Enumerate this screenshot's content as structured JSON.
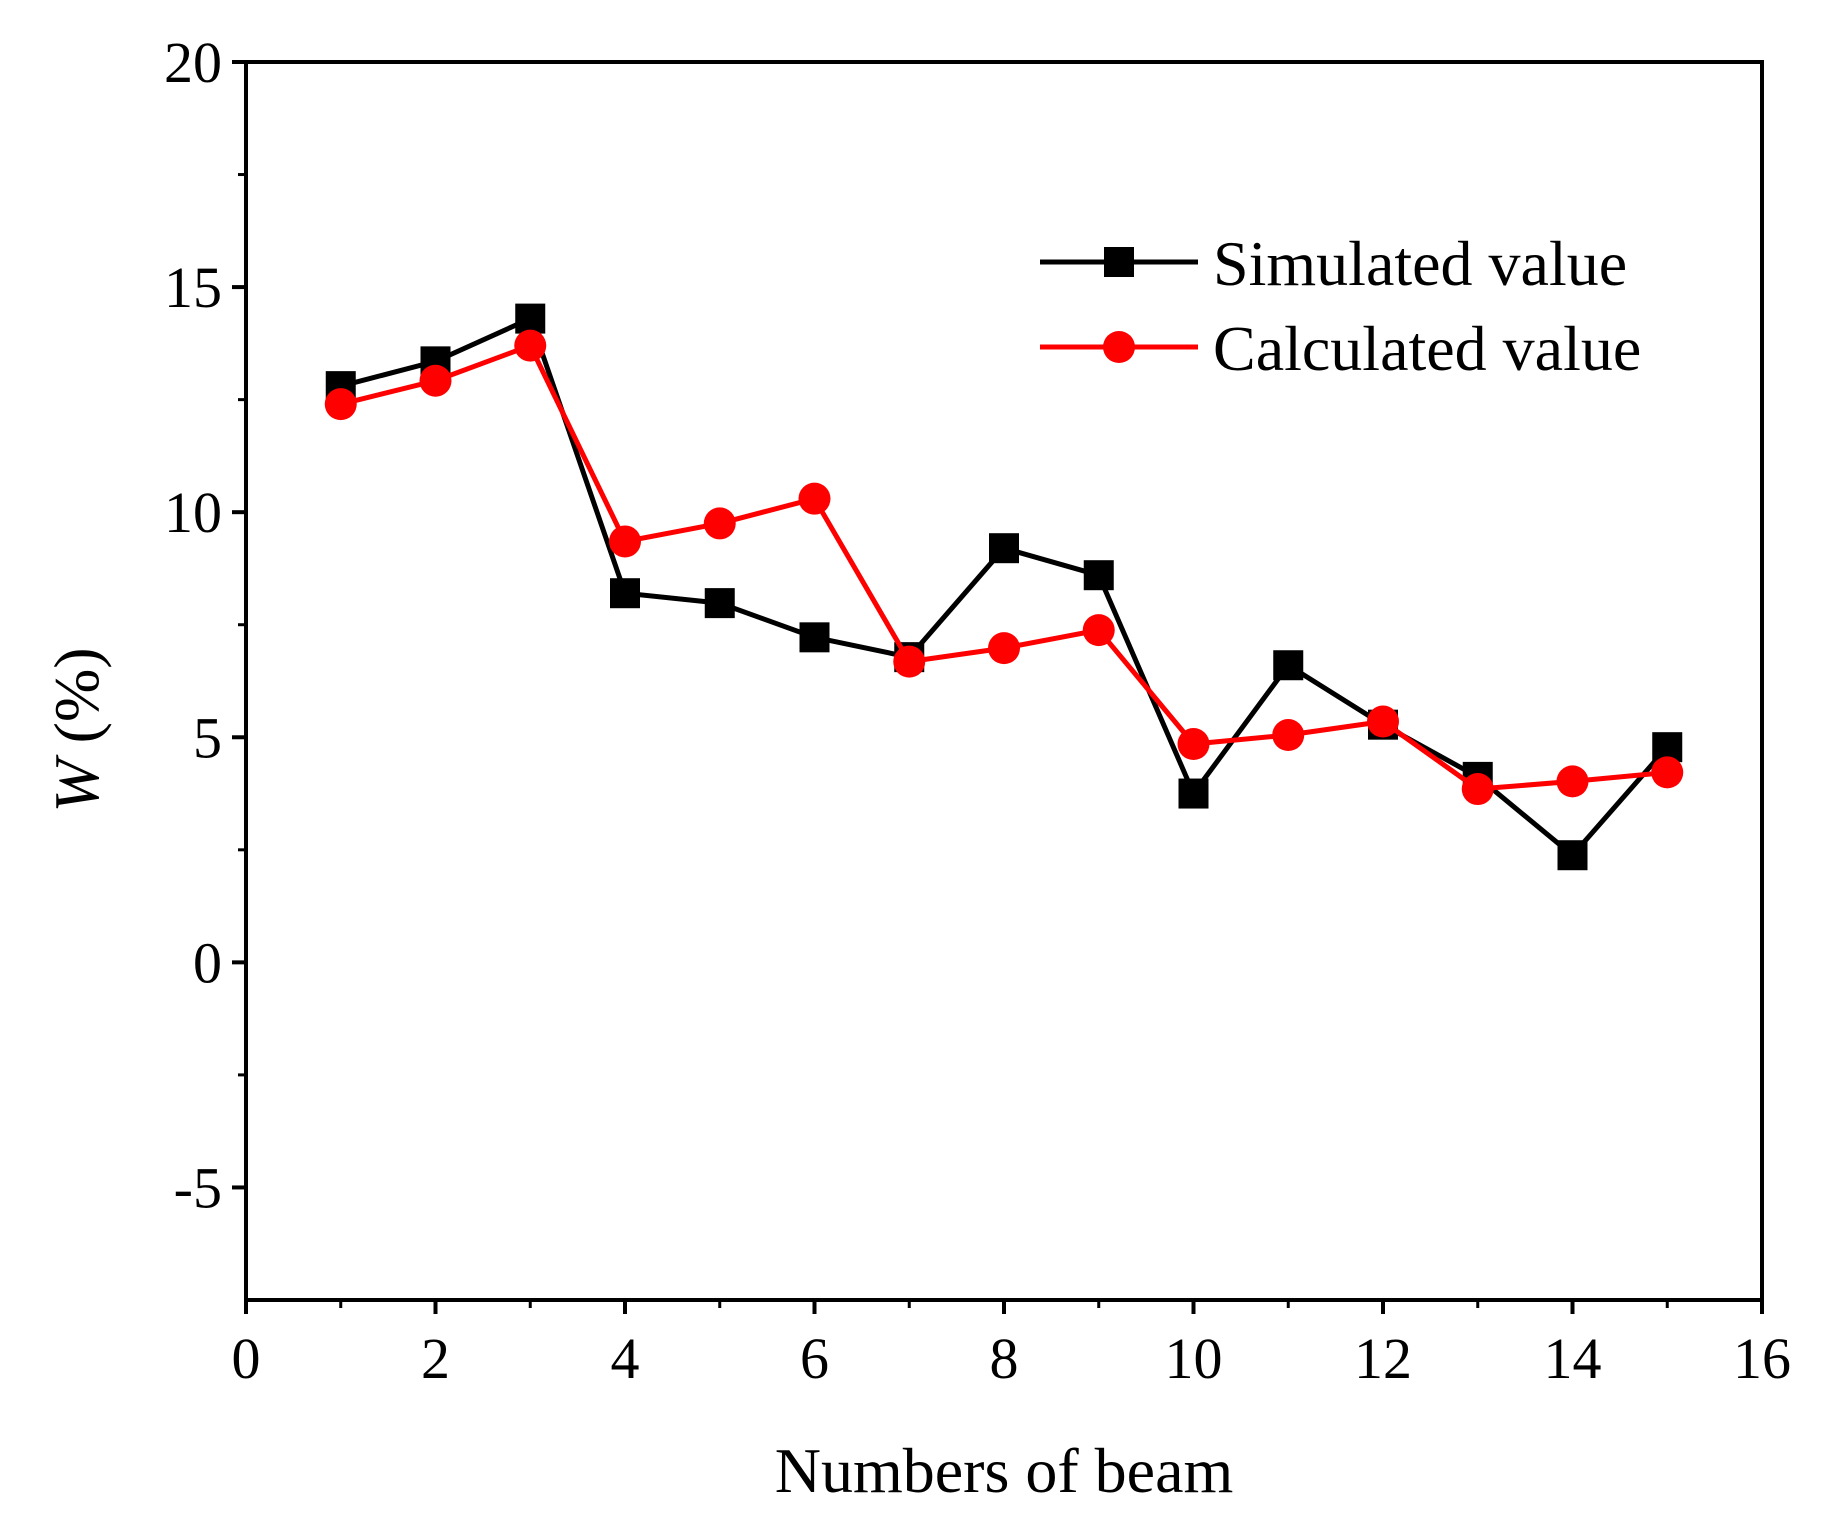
{
  "chart_data": {
    "type": "line",
    "title": "",
    "xlabel": "Numbers of beam",
    "ylabel_var": "W",
    "ylabel_unit": " (%)",
    "xlim": [
      0,
      16
    ],
    "ylim": [
      -7.5,
      20
    ],
    "xticks": [
      0,
      2,
      4,
      6,
      8,
      10,
      12,
      14,
      16
    ],
    "yticks": [
      -5,
      0,
      5,
      10,
      15,
      20
    ],
    "xtick_labels": [
      "0",
      "2",
      "4",
      "6",
      "8",
      "10",
      "12",
      "14",
      "16"
    ],
    "ytick_labels": [
      "-5",
      "0",
      "5",
      "10",
      "15",
      "20"
    ],
    "grid": false,
    "legend_position": "top-right",
    "x": [
      1,
      2,
      3,
      4,
      5,
      6,
      7,
      8,
      9,
      10,
      11,
      12,
      13,
      14,
      15
    ],
    "series": [
      {
        "name": "Simulated value",
        "marker": "square",
        "color": "#000000",
        "values": [
          12.8,
          13.35,
          14.3,
          8.2,
          7.98,
          7.22,
          6.78,
          9.2,
          8.6,
          3.75,
          6.6,
          5.28,
          4.12,
          2.38,
          4.78
        ]
      },
      {
        "name": "Calculated value",
        "marker": "circle",
        "color": "#ff0000",
        "values": [
          12.4,
          12.92,
          13.7,
          9.35,
          9.75,
          10.3,
          6.68,
          6.98,
          7.38,
          4.85,
          5.05,
          5.35,
          3.85,
          4.02,
          4.22
        ]
      }
    ]
  }
}
